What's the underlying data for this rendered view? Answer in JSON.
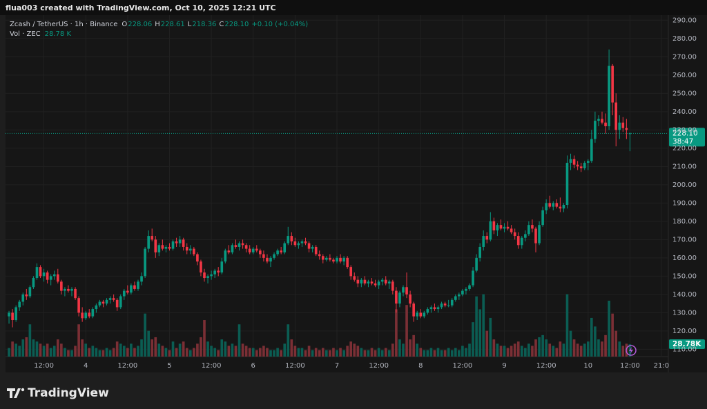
{
  "header": "flua003 created with TradingView.com, Oct 10, 2025 12:21 UTC",
  "chart_data": {
    "type": "candlestick",
    "legend": {
      "title": "Zcash / TetherUS · 1h · Binance",
      "ohlc": [
        [
          "O",
          "228.06"
        ],
        [
          "H",
          "228.61"
        ],
        [
          "L",
          "218.36"
        ],
        [
          "C",
          "228.10"
        ]
      ],
      "change": "+0.10 (+0.04%)"
    },
    "volume_legend": {
      "label": "Vol · ZEC",
      "value": "28.78 K"
    },
    "price_tag": {
      "price": "228.10",
      "countdown": "38:47"
    },
    "volume_tag": "28.78K",
    "up_color": "#089981",
    "down_color": "#f23645",
    "up_volume_color": "#0b5d53",
    "down_volume_color": "#7b2f35",
    "grid": true,
    "xlim": [
      -1,
      189
    ],
    "xticks": [
      {
        "value": 10,
        "label": "12:00"
      },
      {
        "value": 22,
        "label": "4"
      },
      {
        "value": 34,
        "label": "12:00"
      },
      {
        "value": 46,
        "label": "5"
      },
      {
        "value": 58,
        "label": "12:00"
      },
      {
        "value": 70,
        "label": "6"
      },
      {
        "value": 82,
        "label": "12:00"
      },
      {
        "value": 94,
        "label": "7"
      },
      {
        "value": 106,
        "label": "12:00"
      },
      {
        "value": 118,
        "label": "8"
      },
      {
        "value": 130,
        "label": "12:00"
      },
      {
        "value": 142,
        "label": "9"
      },
      {
        "value": 154,
        "label": "12:00"
      },
      {
        "value": 166,
        "label": "10"
      },
      {
        "value": 178,
        "label": "12:00"
      },
      {
        "value": 187,
        "label": "21:0"
      }
    ],
    "ylim": [
      106,
      292
    ],
    "yticks": [
      {
        "value": 110,
        "label": "110.00"
      },
      {
        "value": 120,
        "label": "120.00"
      },
      {
        "value": 130,
        "label": "130.00"
      },
      {
        "value": 140,
        "label": "140.00"
      },
      {
        "value": 150,
        "label": "150.00"
      },
      {
        "value": 160,
        "label": "160.00"
      },
      {
        "value": 170,
        "label": "170.00"
      },
      {
        "value": 180,
        "label": "180.00"
      },
      {
        "value": 190,
        "label": "190.00"
      },
      {
        "value": 200,
        "label": "200.00"
      },
      {
        "value": 210,
        "label": "210.00"
      },
      {
        "value": 220,
        "label": "220.00"
      },
      {
        "value": 230,
        "label": "230.00"
      },
      {
        "value": 240,
        "label": "240.00"
      },
      {
        "value": 250,
        "label": "250.00"
      },
      {
        "value": 260,
        "label": "260.00"
      },
      {
        "value": 270,
        "label": "270.00"
      },
      {
        "value": 280,
        "label": "280.00"
      },
      {
        "value": 290,
        "label": "290.00"
      }
    ],
    "vlim": [
      0,
      300
    ],
    "candles": [
      [
        128,
        131,
        124,
        130,
        20
      ],
      [
        130,
        132,
        122,
        126,
        35
      ],
      [
        126,
        134,
        125,
        133,
        30
      ],
      [
        133,
        137,
        131,
        136,
        25
      ],
      [
        136,
        141,
        134,
        140,
        40
      ],
      [
        140,
        143,
        137,
        139,
        45
      ],
      [
        139,
        145,
        138,
        144,
        75
      ],
      [
        144,
        150,
        143,
        149,
        40
      ],
      [
        149,
        157,
        148,
        155,
        35
      ],
      [
        155,
        156,
        149,
        150,
        30
      ],
      [
        150,
        154,
        147,
        152,
        25
      ],
      [
        152,
        153,
        146,
        148,
        30
      ],
      [
        148,
        151,
        145,
        150,
        20
      ],
      [
        150,
        153,
        148,
        151,
        25
      ],
      [
        151,
        154,
        146,
        147,
        40
      ],
      [
        147,
        148,
        140,
        142,
        30
      ],
      [
        142,
        144,
        139,
        143,
        20
      ],
      [
        143,
        145,
        141,
        142,
        15
      ],
      [
        142,
        144,
        139,
        143,
        15
      ],
      [
        143,
        144,
        137,
        138,
        25
      ],
      [
        138,
        139,
        128,
        130,
        75
      ],
      [
        130,
        133,
        125,
        127,
        40
      ],
      [
        127,
        131,
        126,
        130,
        30
      ],
      [
        130,
        132,
        127,
        128,
        20
      ],
      [
        128,
        133,
        127,
        132,
        25
      ],
      [
        132,
        135,
        130,
        134,
        20
      ],
      [
        134,
        137,
        133,
        136,
        15
      ],
      [
        136,
        137,
        133,
        135,
        15
      ],
      [
        135,
        138,
        134,
        137,
        20
      ],
      [
        137,
        139,
        135,
        138,
        15
      ],
      [
        138,
        140,
        136,
        137,
        20
      ],
      [
        137,
        138,
        131,
        133,
        35
      ],
      [
        133,
        140,
        132,
        139,
        30
      ],
      [
        139,
        143,
        137,
        142,
        25
      ],
      [
        142,
        145,
        140,
        141,
        20
      ],
      [
        141,
        146,
        140,
        145,
        30
      ],
      [
        145,
        147,
        142,
        143,
        20
      ],
      [
        143,
        148,
        142,
        147,
        25
      ],
      [
        147,
        152,
        145,
        150,
        40
      ],
      [
        150,
        166,
        149,
        165,
        100
      ],
      [
        165,
        175,
        163,
        172,
        60
      ],
      [
        172,
        176,
        169,
        170,
        40
      ],
      [
        170,
        172,
        160,
        163,
        45
      ],
      [
        163,
        168,
        161,
        167,
        30
      ],
      [
        167,
        170,
        164,
        165,
        25
      ],
      [
        165,
        167,
        163,
        166,
        20
      ],
      [
        166,
        168,
        164,
        165,
        15
      ],
      [
        165,
        170,
        164,
        169,
        35
      ],
      [
        169,
        171,
        166,
        168,
        20
      ],
      [
        168,
        172,
        166,
        170,
        30
      ],
      [
        170,
        171,
        164,
        166,
        35
      ],
      [
        166,
        168,
        162,
        164,
        20
      ],
      [
        164,
        167,
        162,
        165,
        15
      ],
      [
        165,
        166,
        161,
        162,
        20
      ],
      [
        162,
        163,
        156,
        158,
        30
      ],
      [
        158,
        159,
        150,
        152,
        45
      ],
      [
        152,
        154,
        147,
        149,
        85
      ],
      [
        149,
        151,
        146,
        150,
        35
      ],
      [
        150,
        153,
        148,
        151,
        25
      ],
      [
        151,
        154,
        149,
        153,
        20
      ],
      [
        153,
        155,
        150,
        152,
        15
      ],
      [
        152,
        160,
        151,
        158,
        40
      ],
      [
        158,
        165,
        157,
        164,
        35
      ],
      [
        164,
        167,
        162,
        163,
        25
      ],
      [
        163,
        168,
        162,
        167,
        30
      ],
      [
        167,
        170,
        165,
        166,
        25
      ],
      [
        166,
        169,
        164,
        168,
        75
      ],
      [
        168,
        170,
        165,
        167,
        30
      ],
      [
        167,
        168,
        163,
        165,
        25
      ],
      [
        165,
        167,
        162,
        163,
        20
      ],
      [
        163,
        166,
        162,
        165,
        20
      ],
      [
        165,
        167,
        163,
        164,
        15
      ],
      [
        164,
        165,
        160,
        162,
        20
      ],
      [
        162,
        164,
        158,
        160,
        25
      ],
      [
        160,
        162,
        157,
        158,
        20
      ],
      [
        158,
        161,
        155,
        160,
        15
      ],
      [
        160,
        163,
        159,
        162,
        15
      ],
      [
        162,
        165,
        161,
        164,
        20
      ],
      [
        164,
        166,
        162,
        163,
        15
      ],
      [
        163,
        169,
        162,
        168,
        30
      ],
      [
        168,
        177,
        167,
        172,
        75
      ],
      [
        172,
        174,
        167,
        169,
        40
      ],
      [
        169,
        171,
        166,
        167,
        25
      ],
      [
        167,
        169,
        165,
        168,
        20
      ],
      [
        168,
        170,
        166,
        169,
        20
      ],
      [
        169,
        171,
        167,
        168,
        15
      ],
      [
        168,
        169,
        163,
        165,
        25
      ],
      [
        165,
        167,
        163,
        166,
        15
      ],
      [
        166,
        167,
        161,
        162,
        20
      ],
      [
        162,
        164,
        159,
        161,
        15
      ],
      [
        161,
        162,
        157,
        159,
        20
      ],
      [
        159,
        161,
        158,
        160,
        15
      ],
      [
        160,
        162,
        158,
        159,
        15
      ],
      [
        159,
        160,
        157,
        158,
        20
      ],
      [
        158,
        161,
        157,
        160,
        15
      ],
      [
        160,
        162,
        157,
        158,
        20
      ],
      [
        158,
        161,
        156,
        160,
        15
      ],
      [
        160,
        161,
        154,
        155,
        25
      ],
      [
        155,
        156,
        148,
        150,
        35
      ],
      [
        150,
        152,
        147,
        148,
        30
      ],
      [
        148,
        150,
        144,
        146,
        25
      ],
      [
        146,
        149,
        144,
        148,
        20
      ],
      [
        148,
        150,
        145,
        146,
        15
      ],
      [
        146,
        148,
        144,
        147,
        15
      ],
      [
        147,
        149,
        145,
        146,
        20
      ],
      [
        146,
        148,
        144,
        145,
        15
      ],
      [
        145,
        148,
        143,
        147,
        20
      ],
      [
        147,
        149,
        145,
        148,
        15
      ],
      [
        148,
        150,
        145,
        146,
        20
      ],
      [
        146,
        148,
        143,
        147,
        15
      ],
      [
        147,
        148,
        140,
        142,
        30
      ],
      [
        142,
        144,
        130,
        135,
        110
      ],
      [
        135,
        142,
        133,
        141,
        40
      ],
      [
        141,
        145,
        139,
        144,
        30
      ],
      [
        144,
        152,
        138,
        140,
        120
      ],
      [
        140,
        142,
        133,
        135,
        40
      ],
      [
        135,
        136,
        125,
        128,
        50
      ],
      [
        128,
        131,
        126,
        130,
        30
      ],
      [
        130,
        132,
        127,
        128,
        20
      ],
      [
        128,
        131,
        127,
        130,
        15
      ],
      [
        130,
        133,
        129,
        132,
        15
      ],
      [
        132,
        134,
        130,
        133,
        20
      ],
      [
        133,
        135,
        131,
        132,
        15
      ],
      [
        132,
        134,
        130,
        133,
        20
      ],
      [
        133,
        136,
        132,
        135,
        15
      ],
      [
        135,
        136,
        133,
        134,
        15
      ],
      [
        134,
        137,
        133,
        134,
        20
      ],
      [
        134,
        138,
        133,
        137,
        15
      ],
      [
        137,
        140,
        136,
        139,
        20
      ],
      [
        139,
        141,
        137,
        140,
        15
      ],
      [
        140,
        143,
        139,
        142,
        25
      ],
      [
        142,
        144,
        140,
        143,
        20
      ],
      [
        143,
        146,
        142,
        145,
        30
      ],
      [
        145,
        155,
        144,
        153,
        80
      ],
      [
        153,
        162,
        152,
        160,
        140
      ],
      [
        160,
        168,
        158,
        166,
        110
      ],
      [
        166,
        175,
        164,
        172,
        145
      ],
      [
        172,
        174,
        168,
        170,
        60
      ],
      [
        170,
        185,
        169,
        180,
        90
      ],
      [
        180,
        182,
        173,
        175,
        40
      ],
      [
        175,
        179,
        172,
        178,
        30
      ],
      [
        178,
        181,
        175,
        176,
        25
      ],
      [
        176,
        179,
        174,
        177,
        25
      ],
      [
        177,
        180,
        175,
        176,
        20
      ],
      [
        176,
        178,
        173,
        174,
        25
      ],
      [
        174,
        176,
        170,
        172,
        30
      ],
      [
        172,
        174,
        165,
        167,
        35
      ],
      [
        167,
        172,
        165,
        171,
        25
      ],
      [
        171,
        175,
        169,
        173,
        20
      ],
      [
        173,
        180,
        172,
        178,
        30
      ],
      [
        178,
        181,
        174,
        176,
        25
      ],
      [
        176,
        177,
        163,
        168,
        40
      ],
      [
        168,
        180,
        167,
        178,
        45
      ],
      [
        178,
        188,
        177,
        186,
        50
      ],
      [
        186,
        192,
        184,
        190,
        40
      ],
      [
        190,
        194,
        187,
        188,
        30
      ],
      [
        188,
        191,
        186,
        190,
        25
      ],
      [
        190,
        192,
        187,
        188,
        20
      ],
      [
        188,
        193,
        185,
        187,
        35
      ],
      [
        187,
        190,
        185,
        189,
        30
      ],
      [
        189,
        216,
        187,
        212,
        145
      ],
      [
        212,
        217,
        208,
        214,
        60
      ],
      [
        214,
        216,
        209,
        211,
        40
      ],
      [
        211,
        213,
        208,
        210,
        30
      ],
      [
        210,
        212,
        207,
        209,
        25
      ],
      [
        209,
        213,
        208,
        212,
        30
      ],
      [
        212,
        214,
        208,
        213,
        35
      ],
      [
        213,
        230,
        212,
        225,
        90
      ],
      [
        225,
        240,
        223,
        235,
        70
      ],
      [
        235,
        238,
        232,
        236,
        40
      ],
      [
        236,
        240,
        233,
        234,
        35
      ],
      [
        234,
        239,
        228,
        232,
        50
      ],
      [
        232,
        274,
        230,
        265,
        130
      ],
      [
        265,
        266,
        238,
        245,
        100
      ],
      [
        245,
        250,
        221,
        230,
        60
      ],
      [
        230,
        238,
        225,
        234,
        35
      ],
      [
        234,
        237,
        229,
        231,
        25
      ],
      [
        231,
        236,
        225,
        230,
        30
      ],
      [
        228.06,
        228.61,
        218.36,
        228.1,
        28.78
      ]
    ]
  },
  "branding": "TradingView"
}
